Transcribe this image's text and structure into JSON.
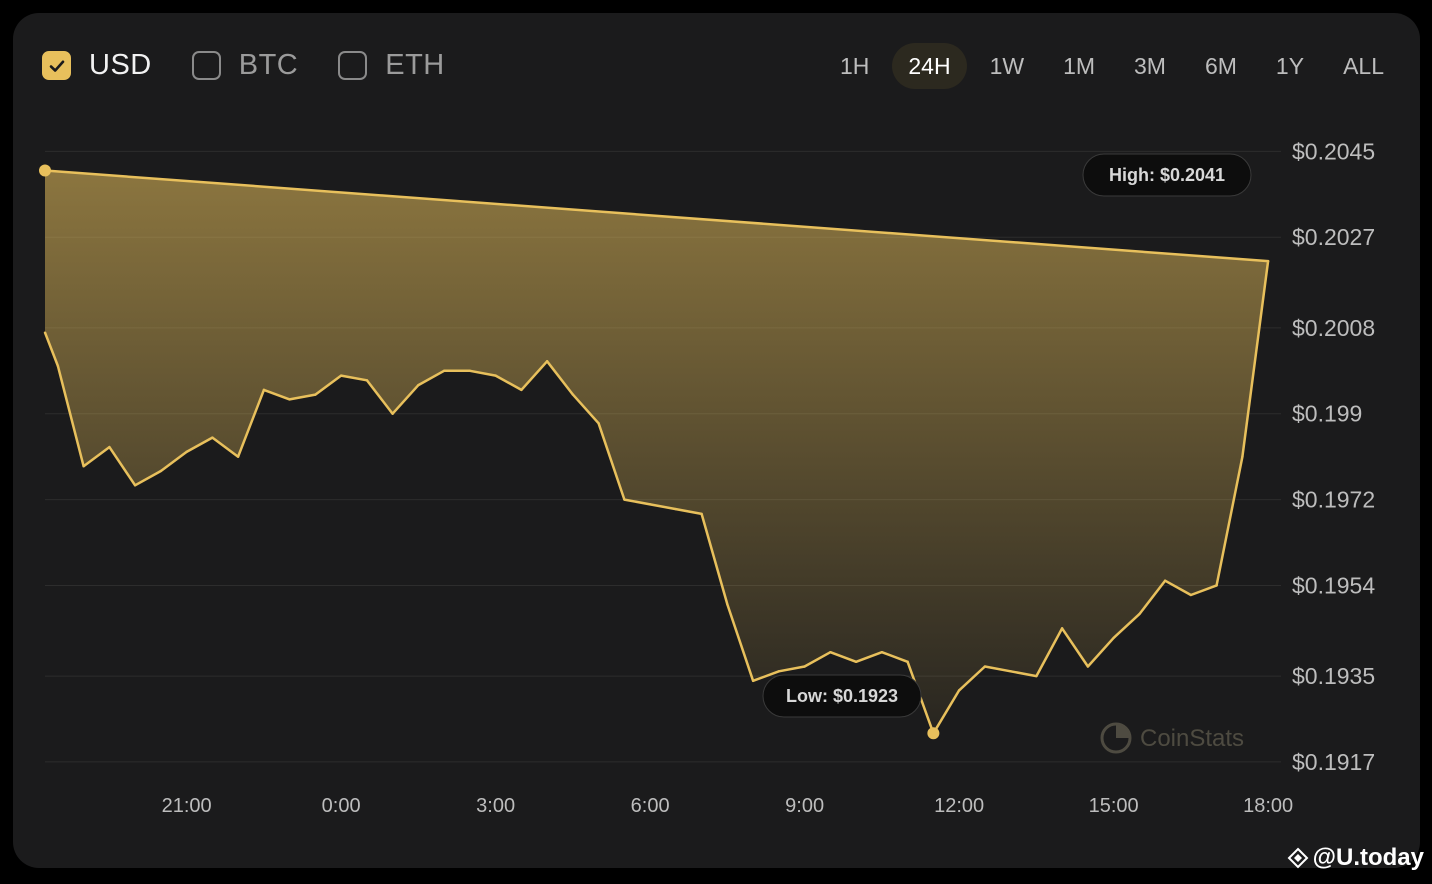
{
  "currencies": [
    {
      "label": "USD",
      "checked": true
    },
    {
      "label": "BTC",
      "checked": false
    },
    {
      "label": "ETH",
      "checked": false
    }
  ],
  "time_ranges": [
    "1H",
    "24H",
    "1W",
    "1M",
    "3M",
    "6M",
    "1Y",
    "ALL"
  ],
  "selected_range": "24H",
  "tooltips": {
    "high": "High: $0.2041",
    "low": "Low: $0.1923"
  },
  "watermark": "CoinStats",
  "brand": "@U.today",
  "colors": {
    "accent": "#e8c05c",
    "background": "#1b1b1c",
    "page": "#000000"
  },
  "chart_data": {
    "type": "area",
    "title": "",
    "xlabel": "",
    "ylabel": "",
    "y_axis_side": "right",
    "grid": "horizontal",
    "ylim": [
      0.1913,
      0.2052
    ],
    "x_ticks": [
      "21:00",
      "0:00",
      "3:00",
      "6:00",
      "9:00",
      "12:00",
      "15:00",
      "18:00"
    ],
    "y_ticks": [
      {
        "value": 0.2045,
        "label": "$0.2045"
      },
      {
        "value": 0.2027,
        "label": "$0.2027"
      },
      {
        "value": 0.2008,
        "label": "$0.2008"
      },
      {
        "value": 0.199,
        "label": "$0.199"
      },
      {
        "value": 0.1972,
        "label": "$0.1972"
      },
      {
        "value": 0.1954,
        "label": "$0.1954"
      },
      {
        "value": 0.1935,
        "label": "$0.1935"
      },
      {
        "value": 0.1917,
        "label": "$0.1917"
      }
    ],
    "series": [
      {
        "x": [
          "18:15",
          "18:30",
          "19:00",
          "19:30",
          "20:00",
          "20:30",
          "21:00",
          "21:30",
          "22:00",
          "22:30",
          "23:00",
          "23:30",
          "0:00",
          "0:30",
          "1:00",
          "1:30",
          "2:00",
          "2:30",
          "3:00",
          "3:30",
          "4:00",
          "4:30",
          "5:00",
          "5:30",
          "6:00",
          "6:30",
          "7:00",
          "7:30",
          "8:00",
          "8:30",
          "9:00",
          "9:30",
          "10:00",
          "10:30",
          "11:00",
          "11:30",
          "12:00",
          "12:30",
          "13:00",
          "13:30",
          "14:00",
          "14:30",
          "15:00",
          "15:30",
          "16:00",
          "16:30",
          "17:00",
          "17:30",
          "18:00",
          "18:15"
        ],
        "values": [
          0.2007,
          0.2,
          0.1979,
          0.1983,
          0.1975,
          0.1978,
          0.1982,
          0.1985,
          0.1981,
          0.1995,
          0.1993,
          0.1994,
          0.1998,
          0.1997,
          0.199,
          0.1996,
          0.1999,
          0.1999,
          0.1998,
          0.1995,
          0.2001,
          0.1994,
          0.1988,
          0.1972,
          0.1971,
          0.197,
          0.1969,
          0.195,
          0.1934,
          0.1936,
          0.1937,
          0.194,
          0.1938,
          0.194,
          0.1938,
          0.1923,
          0.1932,
          0.1937,
          0.1936,
          0.1935,
          0.1945,
          0.1937,
          0.1943,
          0.1948,
          0.1955,
          0.1952,
          0.1954,
          0.1981,
          0.2022,
          0.2041
        ]
      }
    ],
    "annotations": [
      {
        "text": "High: $0.2041",
        "x": "18:15",
        "value": 0.2041
      },
      {
        "text": "Low: $0.1923",
        "x": "11:30",
        "value": 0.1923
      }
    ]
  }
}
